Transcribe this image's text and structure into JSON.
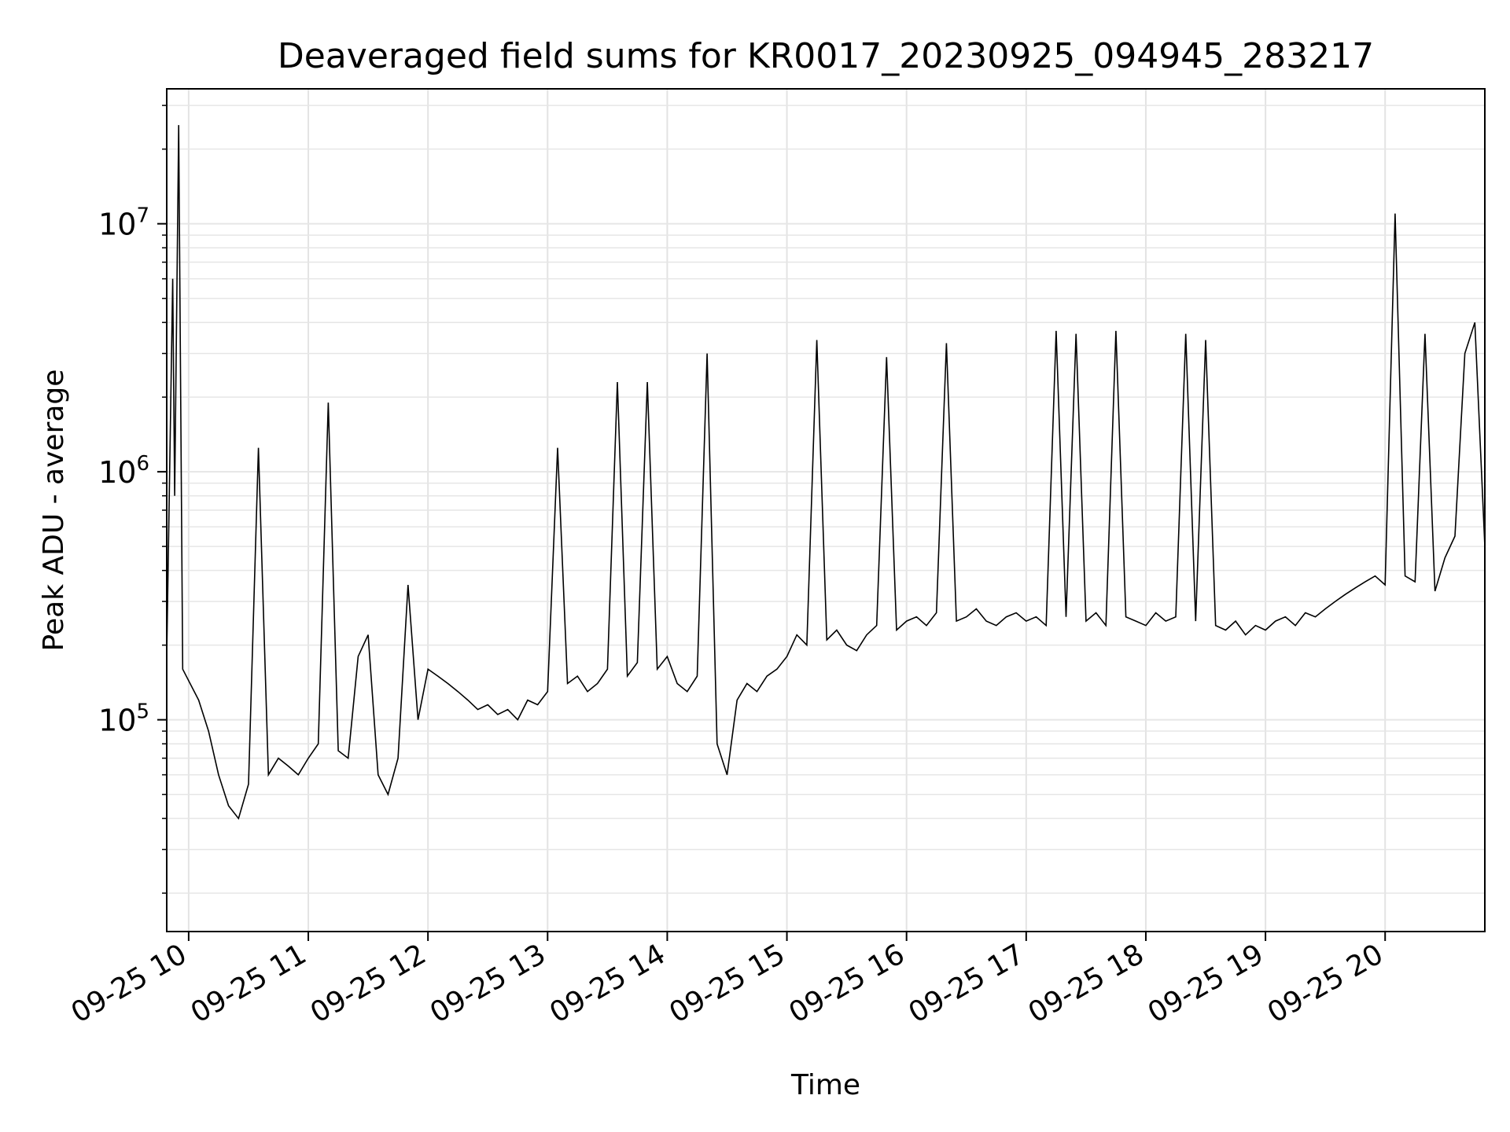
{
  "chart_data": {
    "type": "line",
    "title": "Deaveraged field sums for KR0017_20230925_094945_283217",
    "xlabel": "Time",
    "ylabel": "Peak ADU - average",
    "x_range": [
      "09-25 09:49",
      "09-25 20:50"
    ],
    "ylim": [
      14000,
      35000000
    ],
    "yscale": "log",
    "grid": true,
    "legend": "none",
    "line_color": "#000000",
    "x_ticks": [
      "09-25 10",
      "09-25 11",
      "09-25 12",
      "09-25 13",
      "09-25 14",
      "09-25 15",
      "09-25 16",
      "09-25 17",
      "09-25 18",
      "09-25 19",
      "09-25 20"
    ],
    "y_ticks": [
      {
        "base": "10",
        "exp": "5",
        "value": 100000
      },
      {
        "base": "10",
        "exp": "6",
        "value": 1000000
      },
      {
        "base": "10",
        "exp": "7",
        "value": 10000000
      }
    ],
    "series": [
      {
        "points": [
          [
            "09-25 09:49",
            180000
          ],
          [
            "09-25 09:52",
            6000000
          ],
          [
            "09-25 09:53",
            800000
          ],
          [
            "09-25 09:55",
            25000000
          ],
          [
            "09-25 09:57",
            160000
          ],
          [
            "09-25 10:05",
            120000
          ],
          [
            "09-25 10:10",
            90000
          ],
          [
            "09-25 10:15",
            60000
          ],
          [
            "09-25 10:20",
            45000
          ],
          [
            "09-25 10:25",
            40000
          ],
          [
            "09-25 10:30",
            55000
          ],
          [
            "09-25 10:35",
            1250000
          ],
          [
            "09-25 10:40",
            60000
          ],
          [
            "09-25 10:45",
            70000
          ],
          [
            "09-25 10:50",
            65000
          ],
          [
            "09-25 10:55",
            60000
          ],
          [
            "09-25 11:00",
            70000
          ],
          [
            "09-25 11:05",
            80000
          ],
          [
            "09-25 11:10",
            1900000
          ],
          [
            "09-25 11:15",
            75000
          ],
          [
            "09-25 11:20",
            70000
          ],
          [
            "09-25 11:25",
            180000
          ],
          [
            "09-25 11:30",
            220000
          ],
          [
            "09-25 11:35",
            60000
          ],
          [
            "09-25 11:40",
            50000
          ],
          [
            "09-25 11:45",
            70000
          ],
          [
            "09-25 11:50",
            350000
          ],
          [
            "09-25 11:55",
            100000
          ],
          [
            "09-25 12:00",
            160000
          ],
          [
            "09-25 12:05",
            150000
          ],
          [
            "09-25 12:10",
            140000
          ],
          [
            "09-25 12:15",
            130000
          ],
          [
            "09-25 12:20",
            120000
          ],
          [
            "09-25 12:25",
            110000
          ],
          [
            "09-25 12:30",
            115000
          ],
          [
            "09-25 12:35",
            105000
          ],
          [
            "09-25 12:40",
            110000
          ],
          [
            "09-25 12:45",
            100000
          ],
          [
            "09-25 12:50",
            120000
          ],
          [
            "09-25 12:55",
            115000
          ],
          [
            "09-25 13:00",
            130000
          ],
          [
            "09-25 13:05",
            1250000
          ],
          [
            "09-25 13:10",
            140000
          ],
          [
            "09-25 13:15",
            150000
          ],
          [
            "09-25 13:20",
            130000
          ],
          [
            "09-25 13:25",
            140000
          ],
          [
            "09-25 13:30",
            160000
          ],
          [
            "09-25 13:35",
            2300000
          ],
          [
            "09-25 13:40",
            150000
          ],
          [
            "09-25 13:45",
            170000
          ],
          [
            "09-25 13:50",
            2300000
          ],
          [
            "09-25 13:55",
            160000
          ],
          [
            "09-25 14:00",
            180000
          ],
          [
            "09-25 14:05",
            140000
          ],
          [
            "09-25 14:10",
            130000
          ],
          [
            "09-25 14:15",
            150000
          ],
          [
            "09-25 14:20",
            3000000
          ],
          [
            "09-25 14:25",
            80000
          ],
          [
            "09-25 14:30",
            60000
          ],
          [
            "09-25 14:35",
            120000
          ],
          [
            "09-25 14:40",
            140000
          ],
          [
            "09-25 14:45",
            130000
          ],
          [
            "09-25 14:50",
            150000
          ],
          [
            "09-25 14:55",
            160000
          ],
          [
            "09-25 15:00",
            180000
          ],
          [
            "09-25 15:05",
            220000
          ],
          [
            "09-25 15:10",
            200000
          ],
          [
            "09-25 15:15",
            3400000
          ],
          [
            "09-25 15:20",
            210000
          ],
          [
            "09-25 15:25",
            230000
          ],
          [
            "09-25 15:30",
            200000
          ],
          [
            "09-25 15:35",
            190000
          ],
          [
            "09-25 15:40",
            220000
          ],
          [
            "09-25 15:45",
            240000
          ],
          [
            "09-25 15:50",
            2900000
          ],
          [
            "09-25 15:55",
            230000
          ],
          [
            "09-25 16:00",
            250000
          ],
          [
            "09-25 16:05",
            260000
          ],
          [
            "09-25 16:10",
            240000
          ],
          [
            "09-25 16:15",
            270000
          ],
          [
            "09-25 16:20",
            3300000
          ],
          [
            "09-25 16:25",
            250000
          ],
          [
            "09-25 16:30",
            260000
          ],
          [
            "09-25 16:35",
            280000
          ],
          [
            "09-25 16:40",
            250000
          ],
          [
            "09-25 16:45",
            240000
          ],
          [
            "09-25 16:50",
            260000
          ],
          [
            "09-25 16:55",
            270000
          ],
          [
            "09-25 17:00",
            250000
          ],
          [
            "09-25 17:05",
            260000
          ],
          [
            "09-25 17:10",
            240000
          ],
          [
            "09-25 17:15",
            3700000
          ],
          [
            "09-25 17:20",
            260000
          ],
          [
            "09-25 17:25",
            3600000
          ],
          [
            "09-25 17:30",
            250000
          ],
          [
            "09-25 17:35",
            270000
          ],
          [
            "09-25 17:40",
            240000
          ],
          [
            "09-25 17:45",
            3700000
          ],
          [
            "09-25 17:50",
            260000
          ],
          [
            "09-25 17:55",
            250000
          ],
          [
            "09-25 18:00",
            240000
          ],
          [
            "09-25 18:05",
            270000
          ],
          [
            "09-25 18:10",
            250000
          ],
          [
            "09-25 18:15",
            260000
          ],
          [
            "09-25 18:20",
            3600000
          ],
          [
            "09-25 18:25",
            250000
          ],
          [
            "09-25 18:30",
            3400000
          ],
          [
            "09-25 18:35",
            240000
          ],
          [
            "09-25 18:40",
            230000
          ],
          [
            "09-25 18:45",
            250000
          ],
          [
            "09-25 18:50",
            220000
          ],
          [
            "09-25 18:55",
            240000
          ],
          [
            "09-25 19:00",
            230000
          ],
          [
            "09-25 19:05",
            250000
          ],
          [
            "09-25 19:10",
            260000
          ],
          [
            "09-25 19:15",
            240000
          ],
          [
            "09-25 19:20",
            270000
          ],
          [
            "09-25 19:25",
            260000
          ],
          [
            "09-25 19:30",
            280000
          ],
          [
            "09-25 19:35",
            300000
          ],
          [
            "09-25 19:40",
            320000
          ],
          [
            "09-25 19:45",
            340000
          ],
          [
            "09-25 19:50",
            360000
          ],
          [
            "09-25 19:55",
            380000
          ],
          [
            "09-25 20:00",
            350000
          ],
          [
            "09-25 20:05",
            11000000
          ],
          [
            "09-25 20:10",
            380000
          ],
          [
            "09-25 20:15",
            360000
          ],
          [
            "09-25 20:20",
            3600000
          ],
          [
            "09-25 20:25",
            330000
          ],
          [
            "09-25 20:30",
            450000
          ],
          [
            "09-25 20:35",
            550000
          ],
          [
            "09-25 20:40",
            3000000
          ],
          [
            "09-25 20:45",
            4000000
          ],
          [
            "09-25 20:50",
            500000
          ]
        ]
      }
    ]
  }
}
